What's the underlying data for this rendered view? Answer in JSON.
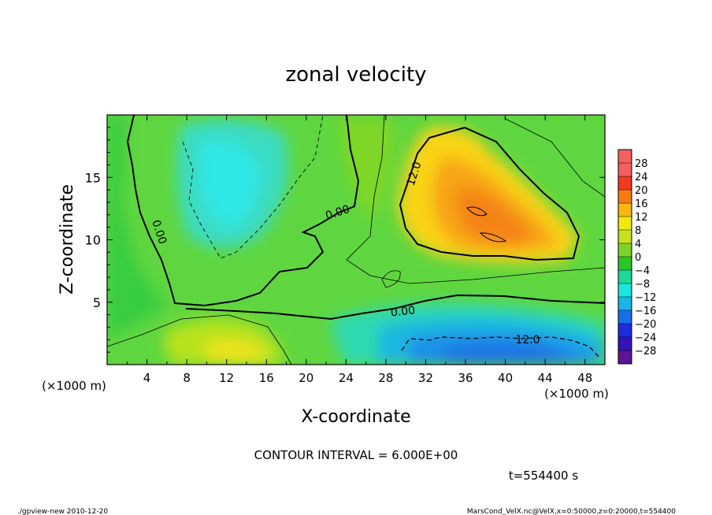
{
  "chart_data": {
    "type": "heatmap",
    "title": "zonal velocity",
    "xlabel": "X-coordinate",
    "ylabel": "Z-coordinate",
    "x_unit": "(×1000 m)",
    "z_unit": "(×1000 m)",
    "xlim": [
      0,
      50
    ],
    "zlim": [
      0,
      20
    ],
    "x_ticks": [
      4,
      8,
      12,
      16,
      20,
      24,
      28,
      32,
      36,
      40,
      44,
      48
    ],
    "z_ticks": [
      5,
      10,
      15
    ],
    "contour_interval_text": "CONTOUR INTERVAL = 6.000E+00",
    "contour_labels": [
      "12.0",
      "0.00",
      "0.00",
      "0.00",
      "12.0"
    ],
    "colorbar": {
      "levels": [
        28,
        24,
        20,
        16,
        12,
        8,
        4,
        0,
        -4,
        -8,
        -12,
        -16,
        -20,
        -24,
        -28
      ],
      "labels": [
        "28",
        "24",
        "20",
        "16",
        "12",
        "8",
        "4",
        "0",
        "−4",
        "−8",
        "−12",
        "−16",
        "−20",
        "−24",
        "−28"
      ],
      "colors": [
        "#f26060",
        "#f26060",
        "#f23a1e",
        "#f87b10",
        "#fbb70d",
        "#f5e60e",
        "#c5e21a",
        "#7ed32a",
        "#27c727",
        "#1ed89a",
        "#18e8e0",
        "#18b4ea",
        "#186fe8",
        "#1a2ee0",
        "#3314b8",
        "#5d1496"
      ]
    },
    "grid": false
  },
  "time_label": "t=554400 s",
  "footer_left": "./gpview-new 2010-12-20",
  "footer_right": "MarsCond_VelX.nc@VelX,x=0:50000,z=0:20000,t=554400"
}
